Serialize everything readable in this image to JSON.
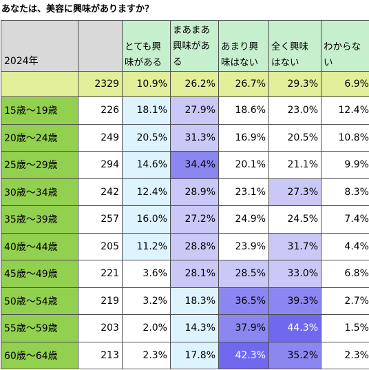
{
  "title": "あなたは、美容に興味がありますか？",
  "year_label": "2024年",
  "colors": {
    "header_green": "#c6efce",
    "header_gray": "#d9d9d9",
    "total_row": "#e2ef98",
    "age_green": "#92d050",
    "light_blue": "#ddf3fd",
    "lavender": "#c9c8f7",
    "strong_purple": "#8c86f0",
    "deep_purple": "#7069ef",
    "white": "#ffffff"
  },
  "chart_data": {
    "type": "table",
    "title": "あなたは、美容に興味がありますか？",
    "year": "2024年",
    "columns": [
      "とても興\n味がある",
      "まあまあ\n興味があ\nる",
      "あまり興\n味はない",
      "全く興味\nはない",
      "わからな\nい"
    ],
    "total": {
      "n": "2329",
      "values": [
        "10.9%",
        "26.2%",
        "26.7%",
        "29.3%",
        "6.9%"
      ]
    },
    "rows": [
      {
        "age": "15歳～19歳",
        "n": "226",
        "values": [
          "18.1%",
          "27.9%",
          "18.6%",
          "23.0%",
          "12.4%"
        ]
      },
      {
        "age": "20歳～24歳",
        "n": "249",
        "values": [
          "20.5%",
          "31.3%",
          "16.9%",
          "20.5%",
          "10.8%"
        ]
      },
      {
        "age": "25歳～29歳",
        "n": "294",
        "values": [
          "14.6%",
          "34.4%",
          "20.1%",
          "21.1%",
          "9.9%"
        ]
      },
      {
        "age": "30歳～34歳",
        "n": "242",
        "values": [
          "12.4%",
          "28.9%",
          "23.1%",
          "27.3%",
          "8.3%"
        ]
      },
      {
        "age": "35歳～39歳",
        "n": "257",
        "values": [
          "16.0%",
          "27.2%",
          "24.9%",
          "24.5%",
          "7.4%"
        ]
      },
      {
        "age": "40歳～44歳",
        "n": "205",
        "values": [
          "11.2%",
          "28.8%",
          "23.9%",
          "31.7%",
          "4.4%"
        ]
      },
      {
        "age": "45歳～49歳",
        "n": "221",
        "values": [
          "3.6%",
          "28.1%",
          "28.5%",
          "33.0%",
          "6.8%"
        ]
      },
      {
        "age": "50歳～54歳",
        "n": "219",
        "values": [
          "3.2%",
          "18.3%",
          "36.5%",
          "39.3%",
          "2.7%"
        ]
      },
      {
        "age": "55歳～59歳",
        "n": "203",
        "values": [
          "2.0%",
          "14.3%",
          "37.9%",
          "44.3%",
          "1.5%"
        ]
      },
      {
        "age": "60歳～64歳",
        "n": "213",
        "values": [
          "2.3%",
          "17.8%",
          "42.3%",
          "35.2%",
          "2.3%"
        ]
      }
    ]
  }
}
